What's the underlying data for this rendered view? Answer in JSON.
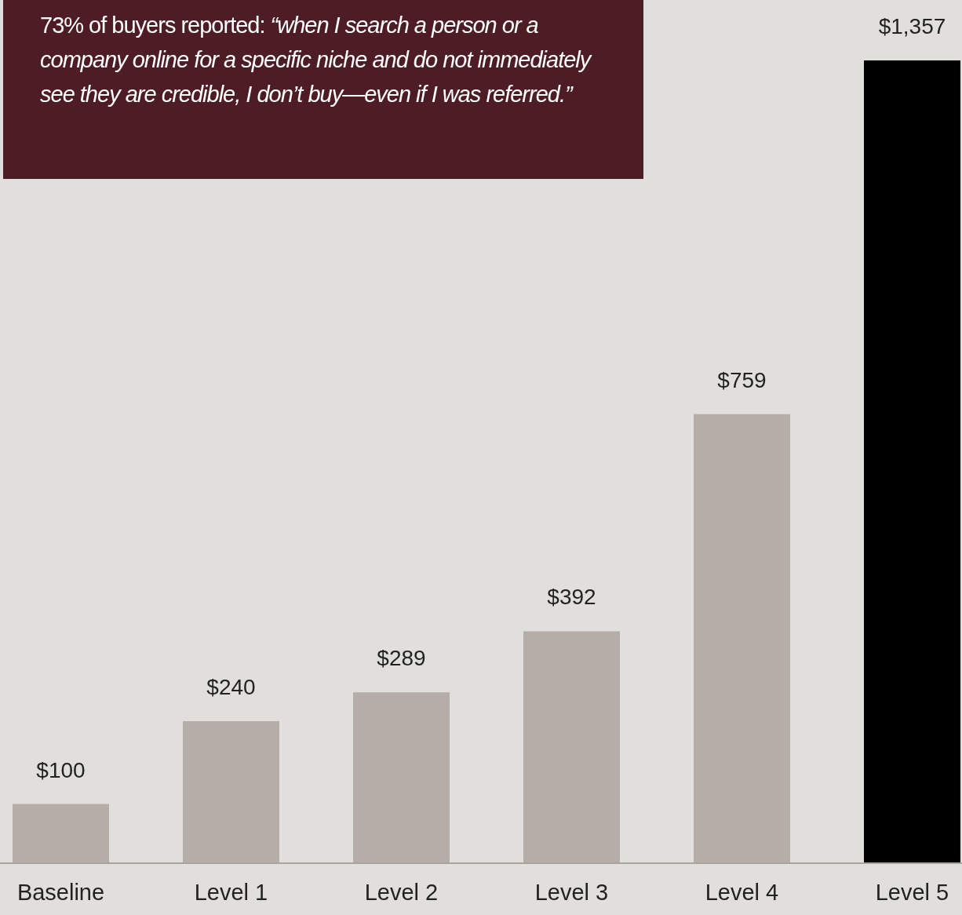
{
  "chart_data": {
    "type": "bar",
    "categories": [
      "Baseline",
      "Level 1",
      "Level 2",
      "Level 3",
      "Level 4",
      "Level 5"
    ],
    "values": [
      100,
      240,
      289,
      392,
      759,
      1357
    ],
    "value_labels": [
      "$100",
      "$240",
      "$289",
      "$392",
      "$759",
      "$1,357"
    ],
    "colors": [
      "#b5aea8",
      "#b5aea8",
      "#b5aea8",
      "#b5aea8",
      "#b5aea8",
      "#000000"
    ],
    "annotations": [
      "73% of buyers reported:",
      "“when I search a person or a company online for a specific niche and do not immediately see they are credible, I don’t buy—even if I was referred.”"
    ],
    "grid": false,
    "legend": false
  }
}
